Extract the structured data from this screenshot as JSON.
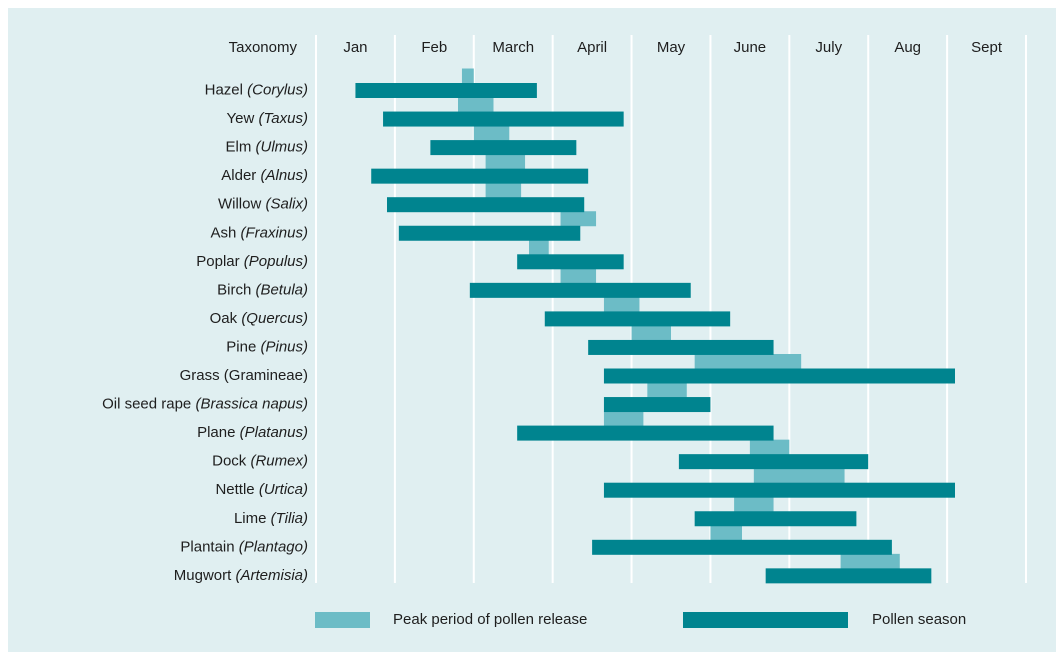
{
  "chart_data": {
    "type": "gantt",
    "header": "Taxonomy",
    "months": [
      "Jan",
      "Feb",
      "March",
      "April",
      "May",
      "June",
      "July",
      "Aug",
      "Sept"
    ],
    "xlim": [
      0,
      9
    ],
    "xticks": [
      0,
      1,
      2,
      3,
      4,
      5,
      6,
      7,
      8,
      9
    ],
    "grid": true,
    "rows": [
      {
        "name": "Hazel",
        "latin": "(Corylus)"
      },
      {
        "name": "Yew",
        "latin": "(Taxus)"
      },
      {
        "name": "Elm",
        "latin": "(Ulmus)"
      },
      {
        "name": "Alder",
        "latin": "(Alnus)"
      },
      {
        "name": "Willow",
        "latin": "(Salix)"
      },
      {
        "name": "Ash",
        "latin": "(Fraxinus)"
      },
      {
        "name": "Poplar",
        "latin": "(Populus)"
      },
      {
        "name": "Birch",
        "latin": "(Betula)"
      },
      {
        "name": "Oak",
        "latin": "(Quercus)"
      },
      {
        "name": "Pine",
        "latin": "(Pinus)"
      },
      {
        "name": "Grass (Gramineae)"
      },
      {
        "name": "Oil seed rape",
        "latin": "(Brassica napus)"
      },
      {
        "name": "Plane",
        "latin": "(Platanus)"
      },
      {
        "name": "Dock",
        "latin": "(Rumex)"
      },
      {
        "name": "Nettle",
        "latin": "(Urtica)"
      },
      {
        "name": "Lime",
        "latin": "(Tilia)"
      },
      {
        "name": "Plantain",
        "latin": "(Plantago)"
      },
      {
        "name": "Mugwort",
        "latin": "(Artemisia)"
      }
    ],
    "series": [
      {
        "name": "Peak period of pollen release",
        "color": "#6cbcc6",
        "starts": [
          1.85,
          1.8,
          2.0,
          2.15,
          2.15,
          3.1,
          2.7,
          3.1,
          3.65,
          4.0,
          4.8,
          4.2,
          3.65,
          5.5,
          5.55,
          5.3,
          5.0,
          6.65
        ],
        "ends": [
          2.0,
          2.25,
          2.45,
          2.65,
          2.6,
          3.55,
          2.95,
          3.55,
          4.1,
          4.5,
          6.15,
          4.7,
          4.15,
          6.0,
          6.7,
          5.8,
          5.4,
          7.4
        ]
      },
      {
        "name": "Pollen season",
        "color": "#00848f",
        "starts": [
          0.5,
          0.85,
          1.45,
          0.7,
          0.9,
          1.05,
          2.55,
          1.95,
          2.9,
          3.45,
          3.65,
          3.65,
          2.55,
          4.6,
          3.65,
          4.8,
          3.5,
          5.7
        ],
        "ends": [
          2.8,
          3.9,
          3.3,
          3.45,
          3.4,
          3.35,
          3.9,
          4.75,
          5.25,
          5.8,
          8.1,
          5.0,
          5.8,
          7.0,
          8.1,
          6.85,
          7.3,
          7.8
        ]
      }
    ]
  }
}
